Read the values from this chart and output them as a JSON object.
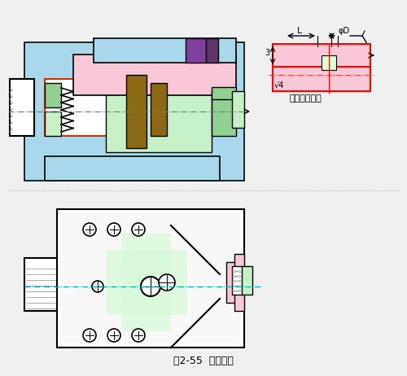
{
  "bg_color": "#f0f0f0",
  "title_text": "图2-55  专用夹具",
  "subtitle_text": "零件工序简图",
  "colors": {
    "light_blue": "#a8d8ea",
    "pink": "#f4a7b9",
    "light_pink": "#f9c8d8",
    "green": "#90d090",
    "light_green": "#c8f0c8",
    "purple": "#9b59b6",
    "dark_purple": "#5c3566",
    "brown": "#8b6914",
    "orange_red": "#cc3300",
    "red": "#ff0000",
    "dark_green": "#2d7a2d",
    "blue": "#4a90d9",
    "black": "#000000",
    "white": "#ffffff",
    "gray": "#888888",
    "dash_red": "#ff4444",
    "teal": "#00aaaa"
  }
}
